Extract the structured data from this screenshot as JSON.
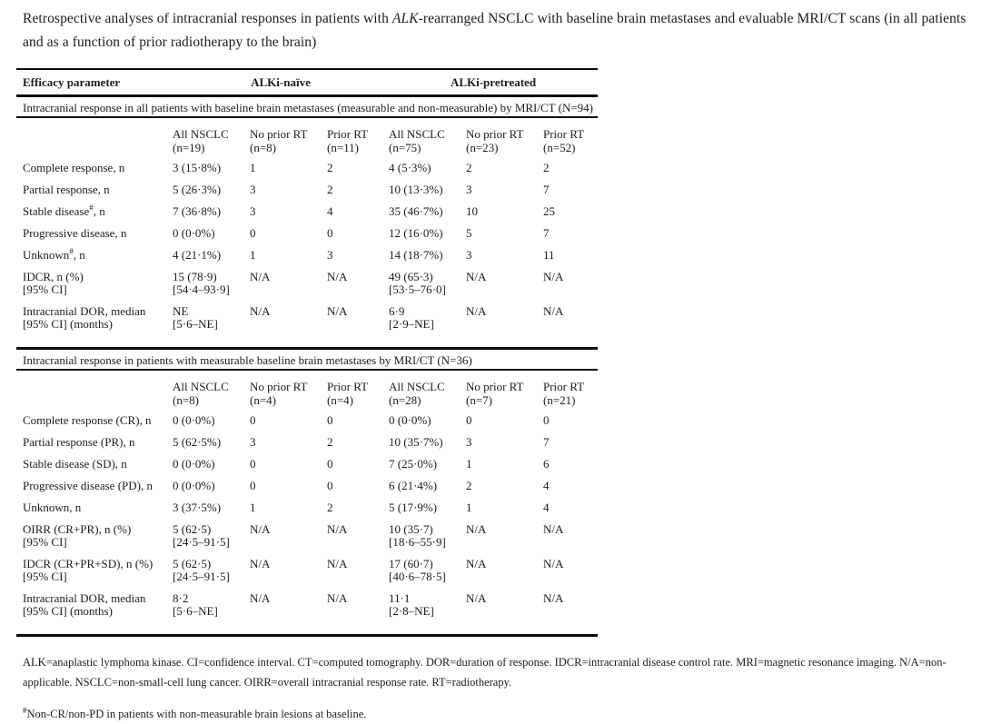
{
  "title": {
    "prefix": "Retrospective analyses of intracranial responses in patients with ",
    "italic": "ALK",
    "suffix": "-rearranged NSCLC with baseline brain metastases and evaluable MRI/CT scans (in all patients and as a function of prior radiotherapy to the brain)"
  },
  "table": {
    "header": {
      "efficacy": "Efficacy parameter",
      "group1": "ALKi-naïve",
      "group2": "ALKi-pretreated"
    },
    "sections": [
      {
        "title": "Intracranial response in all patients with baseline brain metastases (measurable and non-measurable) by MRI/CT (N=94)",
        "columns": [
          "All NSCLC\n(n=19)",
          "No prior RT\n(n=8)",
          "Prior RT\n(n=11)",
          "All NSCLC\n(n=75)",
          "No prior RT\n(n=23)",
          "Prior RT\n(n=52)"
        ],
        "rows": [
          {
            "label": "Complete response, n",
            "cells": [
              "3 (15·8%)",
              "1",
              "2",
              "4 (5·3%)",
              "2",
              "2"
            ]
          },
          {
            "label": "Partial response, n",
            "cells": [
              "5 (26·3%)",
              "3",
              "2",
              "10 (13·3%)",
              "3",
              "7"
            ]
          },
          {
            "label": "Stable disease",
            "label_sup": "#",
            "label_tail": ", n",
            "cells": [
              "7 (36·8%)",
              "3",
              "4",
              "35 (46·7%)",
              "10",
              "25"
            ]
          },
          {
            "label": "Progressive disease, n",
            "cells": [
              "0 (0·0%)",
              "0",
              "0",
              "12 (16·0%)",
              "5",
              "7"
            ]
          },
          {
            "label": "Unknown",
            "label_sup": "#",
            "label_tail": ", n",
            "cells": [
              "4 (21·1%)",
              "1",
              "3",
              "14 (18·7%)",
              "3",
              "11"
            ]
          },
          {
            "label": "IDCR, n (%)\n[95% CI]",
            "cells": [
              "15 (78·9)\n[54·4–93·9]",
              "N/A",
              "N/A",
              "49 (65·3)\n[53·5–76·0]",
              "N/A",
              "N/A"
            ]
          },
          {
            "label": "Intracranial DOR, median\n[95% CI] (months)",
            "cells": [
              "NE\n[5·6–NE]",
              "N/A",
              "N/A",
              "6·9\n[2·9–NE]",
              "N/A",
              "N/A"
            ]
          }
        ]
      },
      {
        "title": "Intracranial response in patients with measurable baseline brain metastases by MRI/CT (N=36)",
        "columns": [
          "All NSCLC\n(n=8)",
          "No prior RT\n(n=4)",
          "Prior RT\n(n=4)",
          "All NSCLC\n(n=28)",
          "No prior RT\n(n=7)",
          "Prior RT\n(n=21)"
        ],
        "rows": [
          {
            "label": "Complete response (CR), n",
            "cells": [
              "0 (0·0%)",
              "0",
              "0",
              "0 (0·0%)",
              "0",
              "0"
            ]
          },
          {
            "label": "Partial response (PR), n",
            "cells": [
              "5 (62·5%)",
              "3",
              "2",
              "10 (35·7%)",
              "3",
              "7"
            ]
          },
          {
            "label": "Stable disease (SD), n",
            "cells": [
              "0 (0·0%)",
              "0",
              "0",
              "7 (25·0%)",
              "1",
              "6"
            ]
          },
          {
            "label": "Progressive disease (PD), n",
            "cells": [
              "0 (0·0%)",
              "0",
              "0",
              "6 (21·4%)",
              "2",
              "4"
            ]
          },
          {
            "label": "Unknown, n",
            "cells": [
              "3 (37·5%)",
              "1",
              "2",
              "5 (17·9%)",
              "1",
              "4"
            ]
          },
          {
            "label": "OIRR (CR+PR), n (%)\n[95% CI]",
            "cells": [
              "5 (62·5)\n[24·5–91·5]",
              "N/A",
              "N/A",
              "10 (35·7)\n[18·6–55·9]",
              "N/A",
              "N/A"
            ]
          },
          {
            "label": "IDCR (CR+PR+SD), n (%)\n[95% CI]",
            "cells": [
              "5 (62·5)\n[24·5–91·5]",
              "N/A",
              "N/A",
              "17 (60·7)\n[40·6–78·5]",
              "N/A",
              "N/A"
            ]
          },
          {
            "label": "Intracranial DOR, median\n[95% CI] (months)",
            "cells": [
              "8·2\n[5·6–NE]",
              "N/A",
              "N/A",
              "11·1\n[2·8–NE]",
              "N/A",
              "N/A"
            ]
          }
        ]
      }
    ]
  },
  "footnotes": {
    "abbreviations": "ALK=anaplastic lymphoma kinase. CI=confidence interval. CT=computed tomography. DOR=duration of response. IDCR=intracranial disease control rate. MRI=magnetic resonance imaging. N/A=non-applicable. NSCLC=non-small-cell lung cancer. OIRR=overall intracranial response rate. RT=radiotherapy.",
    "note_sup": "#",
    "note_text": "Non-CR/non-PD in patients with non-measurable brain lesions at baseline."
  }
}
